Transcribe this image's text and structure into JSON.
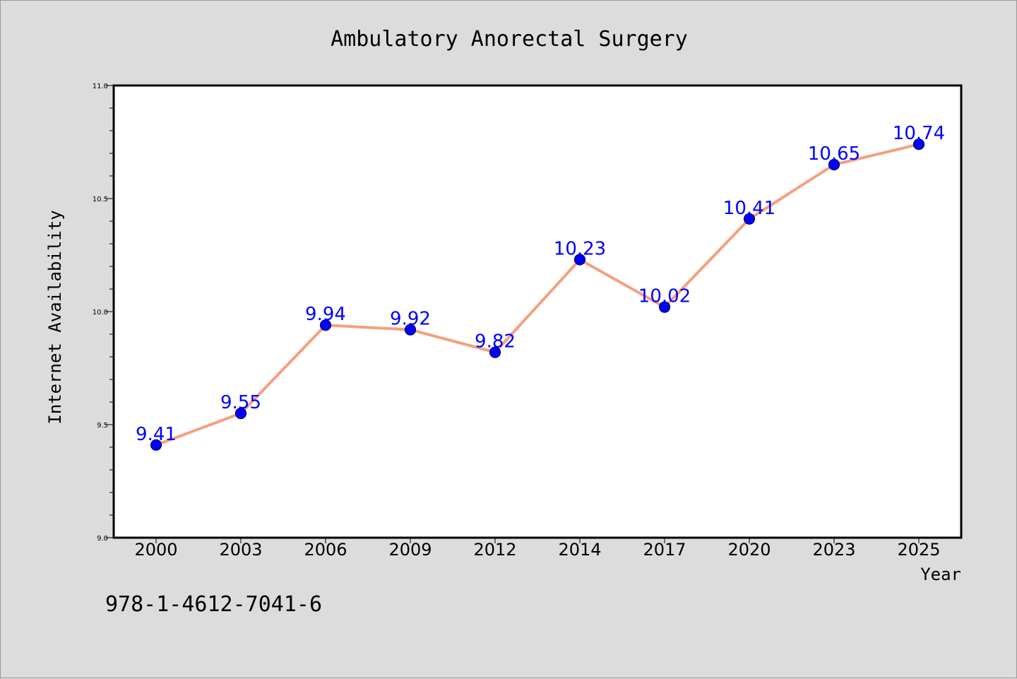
{
  "chart_data": {
    "type": "line",
    "title": "Ambulatory Anorectal Surgery",
    "xlabel": "Year",
    "ylabel": "Internet Availability",
    "categories": [
      "2000",
      "2003",
      "2006",
      "2009",
      "2012",
      "2014",
      "2017",
      "2020",
      "2023",
      "2025"
    ],
    "values": [
      9.41,
      9.55,
      9.94,
      9.92,
      9.82,
      10.23,
      10.02,
      10.41,
      10.65,
      10.74
    ],
    "data_labels": [
      "9.41",
      "9.55",
      "9.94",
      "9.92",
      "9.82",
      "10.23",
      "10.02",
      "10.41",
      "10.65",
      "10.74"
    ],
    "ylim": [
      9.0,
      11.0
    ],
    "y_ticks": [
      "9.0",
      "9.5",
      "10.0",
      "10.5",
      "11.0"
    ],
    "grid": false,
    "legend": "none",
    "colors": {
      "line": "#f4a07e",
      "marker": "#0000ff",
      "marker_edge": "#00005a",
      "data_label": "#0000ff",
      "background": "#dcdcdc",
      "plot_area": "#ffffff"
    }
  },
  "footer": {
    "code": "978-1-4612-7041-6"
  }
}
